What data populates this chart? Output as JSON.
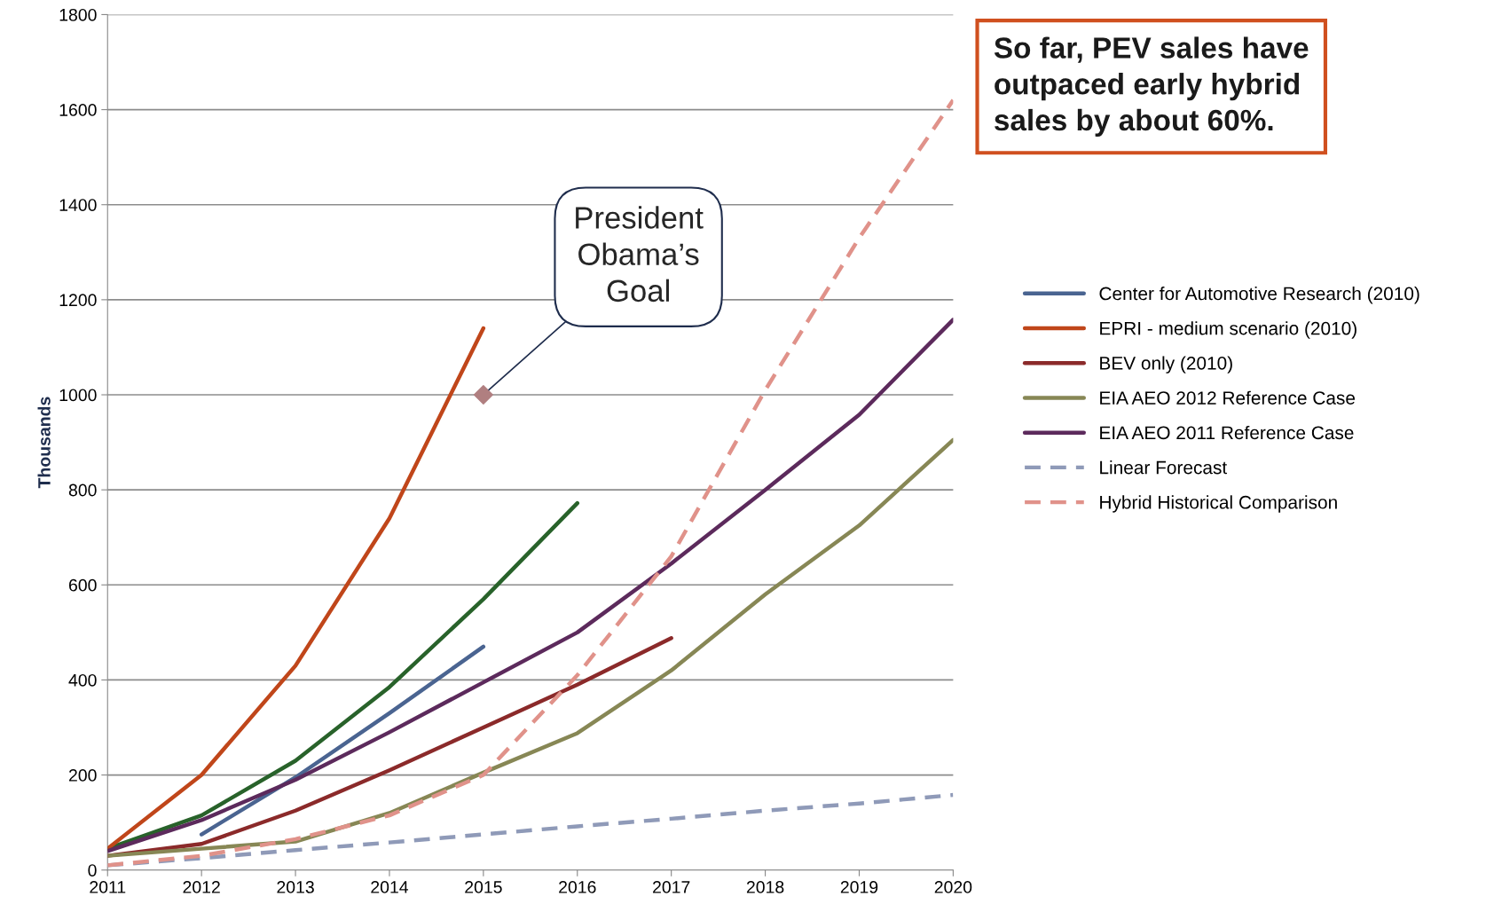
{
  "chart_data": {
    "type": "line",
    "ylabel": "Thousands",
    "xlim": [
      2011,
      2020
    ],
    "xticks": [
      2011,
      2012,
      2013,
      2014,
      2015,
      2016,
      2017,
      2018,
      2019,
      2020
    ],
    "ylim": [
      0,
      1800
    ],
    "yticks": [
      0,
      200,
      400,
      600,
      800,
      1000,
      1200,
      1400,
      1600,
      1800
    ],
    "grid": "y",
    "legend": "right",
    "marker": "none",
    "series": [
      {
        "color": "#28622a",
        "x": [
          2011,
          2012,
          2013,
          2014,
          2015,
          2016
        ],
        "values": [
          45,
          115,
          230,
          385,
          570,
          772
        ]
      },
      {
        "name": "Center for Automotive Research (2010)",
        "color": "#4a6491",
        "x": [
          2012,
          2013,
          2014,
          2015
        ],
        "values": [
          75,
          195,
          330,
          470
        ]
      },
      {
        "name": "EPRI - medium scenario (2010)",
        "color": "#c0461a",
        "x": [
          2011,
          2012,
          2013,
          2014,
          2015
        ],
        "values": [
          45,
          200,
          430,
          740,
          1140
        ]
      },
      {
        "name": "BEV only (2010)",
        "color": "#8b2a2a",
        "x": [
          2011,
          2012,
          2013,
          2014,
          2015,
          2016,
          2017
        ],
        "values": [
          30,
          55,
          125,
          210,
          300,
          390,
          488
        ]
      },
      {
        "name": "EIA AEO 2012 Reference Case",
        "color": "#878755",
        "x": [
          2011,
          2012,
          2013,
          2014,
          2015,
          2016,
          2017,
          2018,
          2019,
          2020
        ],
        "values": [
          30,
          45,
          60,
          120,
          205,
          288,
          420,
          580,
          725,
          905
        ]
      },
      {
        "name": "EIA AEO 2011 Reference Case",
        "color": "#5c2a5c",
        "x": [
          2011,
          2012,
          2013,
          2014,
          2015,
          2016,
          2017,
          2018,
          2019,
          2020
        ],
        "values": [
          40,
          105,
          190,
          290,
          395,
          500,
          645,
          800,
          958,
          1158
        ]
      },
      {
        "name": "Linear Forecast",
        "color": "#8f9ab8",
        "line_style": "dashed",
        "x": [
          2011,
          2012,
          2013,
          2014,
          2015,
          2016,
          2017,
          2018,
          2019,
          2020
        ],
        "values": [
          10,
          25,
          42,
          58,
          75,
          92,
          108,
          125,
          140,
          158
        ]
      },
      {
        "name": "Hybrid Historical Comparison",
        "color": "#e0928a",
        "line_style": "dashed",
        "x": [
          2011,
          2012,
          2013,
          2014,
          2015,
          2016,
          2017,
          2018,
          2019,
          2020
        ],
        "values": [
          10,
          30,
          65,
          115,
          200,
          410,
          660,
          1010,
          1330,
          1620
        ]
      },
      {
        "type": "scatter",
        "marker": "diamond",
        "color": "#b07f80",
        "x": [
          2015
        ],
        "values": [
          1000
        ]
      }
    ],
    "annotations": [
      {
        "text": "President\nObama’s\nGoal",
        "x": 2015,
        "y": 1000
      },
      "So far, PEV sales have\noutpaced early hybrid\nsales by about 60%."
    ]
  }
}
